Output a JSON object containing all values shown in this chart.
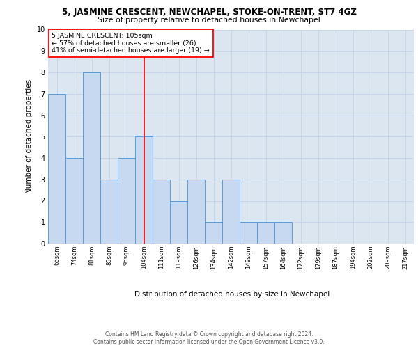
{
  "title_main": "5, JASMINE CRESCENT, NEWCHAPEL, STOKE-ON-TRENT, ST7 4GZ",
  "title_sub": "Size of property relative to detached houses in Newchapel",
  "xlabel": "Distribution of detached houses by size in Newchapel",
  "ylabel": "Number of detached properties",
  "bin_labels": [
    "66sqm",
    "74sqm",
    "81sqm",
    "89sqm",
    "96sqm",
    "104sqm",
    "111sqm",
    "119sqm",
    "126sqm",
    "134sqm",
    "142sqm",
    "149sqm",
    "157sqm",
    "164sqm",
    "172sqm",
    "179sqm",
    "187sqm",
    "194sqm",
    "202sqm",
    "209sqm",
    "217sqm"
  ],
  "bar_heights": [
    7,
    4,
    8,
    3,
    4,
    5,
    3,
    2,
    3,
    1,
    3,
    1,
    1,
    1,
    0,
    0,
    0,
    0,
    0,
    0,
    0
  ],
  "bar_color": "#c6d9f1",
  "bar_edge_color": "#5b9bd5",
  "reference_line_idx": 5,
  "annotation_title": "5 JASMINE CRESCENT: 105sqm",
  "annotation_line1": "← 57% of detached houses are smaller (26)",
  "annotation_line2": "41% of semi-detached houses are larger (19) →",
  "vline_color": "red",
  "ylim_max": 10,
  "grid_color": "#c8d5e8",
  "background_color": "#dce6f1",
  "footer_line1": "Contains HM Land Registry data © Crown copyright and database right 2024.",
  "footer_line2": "Contains public sector information licensed under the Open Government Licence v3.0."
}
